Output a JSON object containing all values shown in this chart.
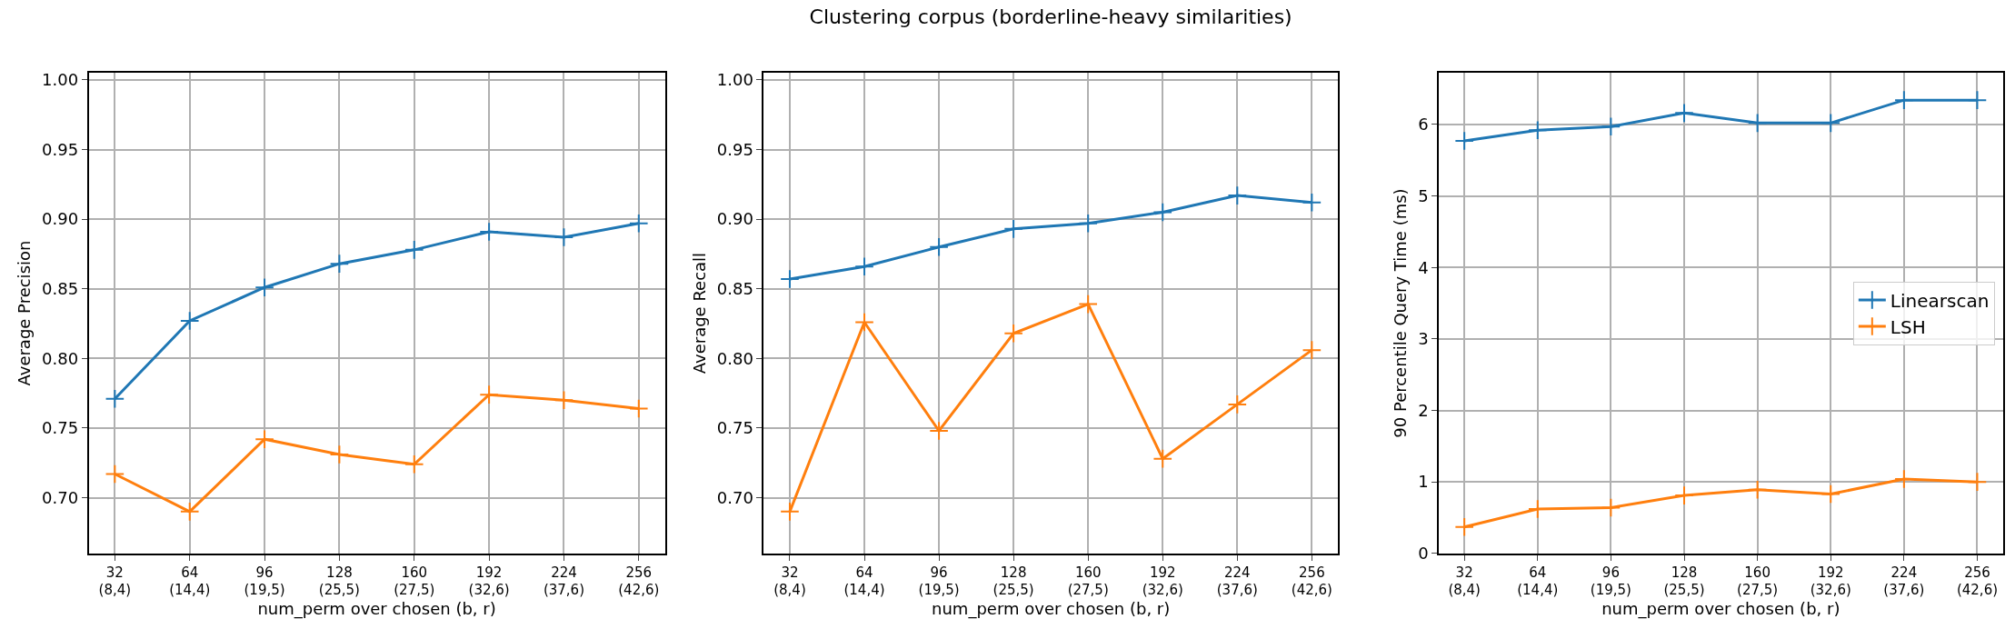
{
  "chart_data": [
    {
      "type": "line",
      "xlabel": "num_perm over chosen (b, r)",
      "ylabel": "Average Precision",
      "categories": [
        "32\n(8,4)",
        "64\n(14,4)",
        "96\n(19,5)",
        "128\n(25,5)",
        "160\n(27,5)",
        "192\n(32,6)",
        "224\n(37,6)",
        "256\n(42,6)"
      ],
      "series": [
        {
          "color": "#1f77b4",
          "values": [
            0.771,
            0.827,
            0.851,
            0.868,
            0.878,
            0.891,
            0.887,
            0.897
          ]
        },
        {
          "color": "#ff7f0e",
          "values": [
            0.717,
            0.69,
            0.742,
            0.731,
            0.724,
            0.774,
            0.77,
            0.764
          ]
        }
      ],
      "ylim": [
        0.66,
        1.005
      ],
      "yticks": [
        {
          "value": 0.7,
          "label": "0.70"
        },
        {
          "value": 0.75,
          "label": "0.75"
        },
        {
          "value": 0.8,
          "label": "0.80"
        },
        {
          "value": 0.85,
          "label": "0.85"
        },
        {
          "value": 0.9,
          "label": "0.90"
        },
        {
          "value": 0.95,
          "label": "0.95"
        },
        {
          "value": 1.0,
          "label": "1.00"
        }
      ],
      "grid": true,
      "marker": "cross",
      "line_style": "solid"
    },
    {
      "type": "line",
      "title": "Clustering corpus (borderline-heavy similarities)",
      "xlabel": "num_perm over chosen (b, r)",
      "ylabel": "Average Recall",
      "categories": [
        "32\n(8,4)",
        "64\n(14,4)",
        "96\n(19,5)",
        "128\n(25,5)",
        "160\n(27,5)",
        "192\n(32,6)",
        "224\n(37,6)",
        "256\n(42,6)"
      ],
      "series": [
        {
          "color": "#1f77b4",
          "values": [
            0.857,
            0.866,
            0.88,
            0.893,
            0.897,
            0.905,
            0.917,
            0.912
          ]
        },
        {
          "color": "#ff7f0e",
          "values": [
            0.69,
            0.826,
            0.748,
            0.818,
            0.839,
            0.728,
            0.767,
            0.806
          ]
        }
      ],
      "ylim": [
        0.66,
        1.005
      ],
      "yticks": [
        {
          "value": 0.7,
          "label": "0.70"
        },
        {
          "value": 0.75,
          "label": "0.75"
        },
        {
          "value": 0.8,
          "label": "0.80"
        },
        {
          "value": 0.85,
          "label": "0.85"
        },
        {
          "value": 0.9,
          "label": "0.90"
        },
        {
          "value": 0.95,
          "label": "0.95"
        },
        {
          "value": 1.0,
          "label": "1.00"
        }
      ],
      "grid": true,
      "marker": "cross",
      "line_style": "solid"
    },
    {
      "type": "line",
      "xlabel": "num_perm over chosen (b, r)",
      "ylabel": "90 Percentile Query Time (ms)",
      "categories": [
        "32\n(8,4)",
        "64\n(14,4)",
        "96\n(19,5)",
        "128\n(25,5)",
        "160\n(27,5)",
        "192\n(32,6)",
        "224\n(37,6)",
        "256\n(42,6)"
      ],
      "series": [
        {
          "name": "Linearscan",
          "color": "#1f77b4",
          "values": [
            5.77,
            5.92,
            5.97,
            6.16,
            6.02,
            6.02,
            6.34,
            6.34
          ]
        },
        {
          "name": "LSH",
          "color": "#ff7f0e",
          "values": [
            0.37,
            0.62,
            0.64,
            0.81,
            0.89,
            0.83,
            1.04,
            1.0
          ]
        }
      ],
      "ylim": [
        0,
        6.72
      ],
      "yticks": [
        0,
        1,
        2,
        3,
        4,
        5,
        6
      ],
      "grid": true,
      "legend": "right",
      "marker": "cross",
      "line_style": "solid"
    }
  ]
}
